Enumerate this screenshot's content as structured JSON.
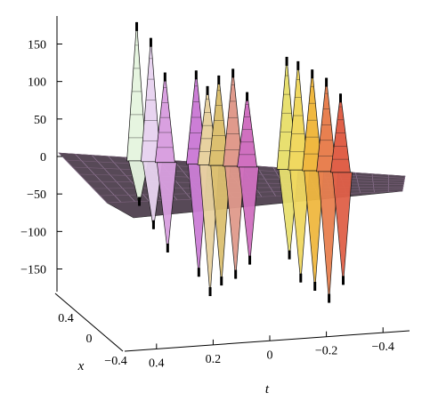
{
  "chart_data": {
    "type": "surface3d",
    "z_axis": {
      "ticks": [
        "150",
        "100",
        "50",
        "0",
        "−50",
        "−100",
        "−150"
      ],
      "tick_values": [
        150,
        100,
        50,
        0,
        -50,
        -100,
        -150
      ],
      "range": [
        -180,
        185
      ]
    },
    "x_axis": {
      "label": "x",
      "ticks": [
        "0.4",
        "0",
        "−0.4"
      ],
      "tick_values": [
        0.4,
        0,
        -0.4
      ],
      "range": [
        -0.5,
        0.5
      ]
    },
    "t_axis": {
      "label": "t",
      "ticks": [
        "0.4",
        "0.2",
        "0",
        "−0.2",
        "−0.4"
      ],
      "tick_values": [
        0.4,
        0.2,
        0,
        -0.2,
        -0.4
      ],
      "range": [
        -0.5,
        0.5
      ]
    },
    "peaks": [
      {
        "t": 0.47,
        "z_max": 185,
        "z_min": -60
      },
      {
        "t": 0.42,
        "z_max": 165,
        "z_min": -90
      },
      {
        "t": 0.37,
        "z_max": 120,
        "z_min": -120
      },
      {
        "t": 0.26,
        "z_max": 125,
        "z_min": -150
      },
      {
        "t": 0.22,
        "z_max": 105,
        "z_min": -175
      },
      {
        "t": 0.18,
        "z_max": 120,
        "z_min": -160
      },
      {
        "t": 0.13,
        "z_max": 130,
        "z_min": -150
      },
      {
        "t": 0.08,
        "z_max": 100,
        "z_min": -130
      },
      {
        "t": -0.06,
        "z_max": 150,
        "z_min": -120
      },
      {
        "t": -0.1,
        "z_max": 145,
        "z_min": -150
      },
      {
        "t": -0.15,
        "z_max": 135,
        "z_min": -160
      },
      {
        "t": -0.2,
        "z_max": 125,
        "z_min": -175
      },
      {
        "t": -0.25,
        "z_max": 105,
        "z_min": -150
      }
    ],
    "colors": [
      "#e6f5e0",
      "#e8d4f0",
      "#d9a0e0",
      "#cc7ed6",
      "#e8d2a0",
      "#dcc070",
      "#e09a8c",
      "#d070c0",
      "#e8e070",
      "#f0d860",
      "#f0b840",
      "#e88050",
      "#e06048"
    ],
    "grid": false,
    "legend": "none"
  }
}
